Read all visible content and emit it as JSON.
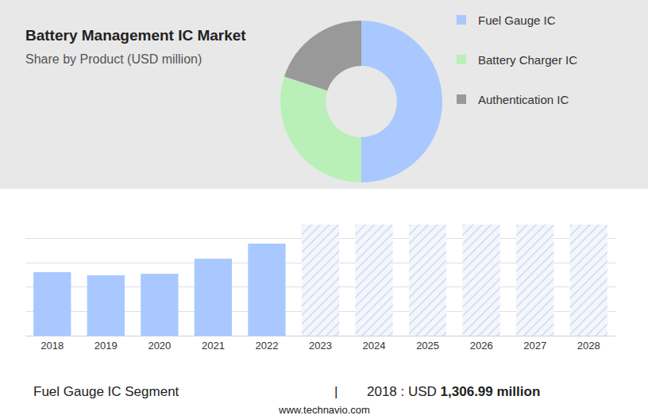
{
  "chart_data": [
    {
      "type": "pie",
      "title": "Battery Management IC Market",
      "subtitle": "Share by Product (USD million)",
      "categories": [
        "Fuel Gauge IC",
        "Battery Charger IC",
        "Authentication IC"
      ],
      "values": [
        50,
        30,
        20
      ],
      "colors": [
        "#a8c8ff",
        "#b8f0b8",
        "#999999"
      ]
    },
    {
      "type": "bar",
      "categories": [
        "2018",
        "2019",
        "2020",
        "2021",
        "2022",
        "2023",
        "2024",
        "2025",
        "2026",
        "2027",
        "2028"
      ],
      "series": [
        {
          "color": "#a8c8ff",
          "marker": "solid",
          "values": [
            1306.99,
            1242,
            1274,
            1585,
            1895,
            null,
            null,
            null,
            null,
            null,
            null
          ]
        },
        {
          "color": "#c4d3f0",
          "marker": "hatched",
          "values": [
            null,
            null,
            null,
            null,
            null,
            2287,
            2287,
            2287,
            2287,
            2287,
            2287
          ]
        }
      ],
      "ylim": [
        0,
        2500
      ],
      "yticks": [
        0,
        500,
        1000,
        1500,
        2000,
        2500
      ],
      "grid": true,
      "tick_labels": "x"
    }
  ],
  "footer": {
    "segment": "Fuel Gauge IC Segment",
    "separator": "|",
    "lead": "2018 : USD",
    "highlight": "1,306.99 million"
  },
  "source": "www.technavio.com"
}
